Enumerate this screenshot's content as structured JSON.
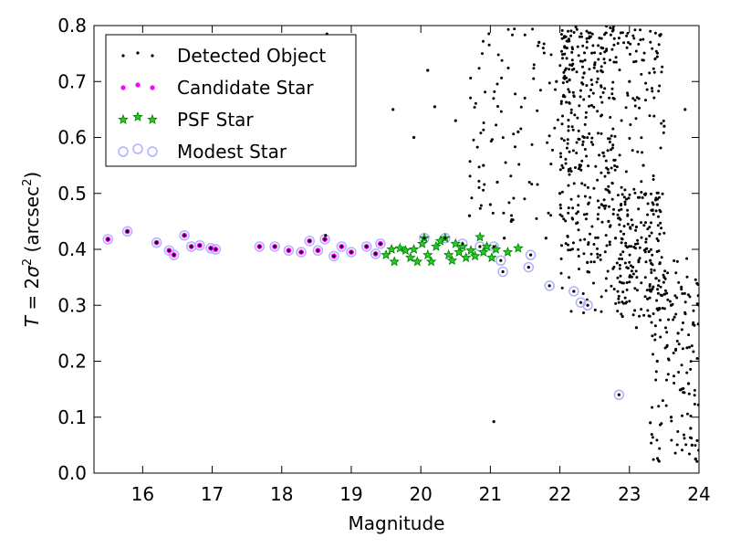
{
  "chart_data": {
    "type": "scatter",
    "xlabel": "Magnitude",
    "ylabel": "T = 2σ² (arcsec²)",
    "ylabel_parts": {
      "italic": "T",
      "mid": " = 2",
      "sigma": "σ",
      "sup": "2",
      "unit": " (arcsec",
      "unit_sup": "2",
      "close": ")"
    },
    "xlim": [
      15.3,
      24
    ],
    "ylim": [
      0,
      0.8
    ],
    "xticks": [
      16,
      17,
      18,
      19,
      20,
      21,
      22,
      23,
      24
    ],
    "yticks": [
      0.0,
      0.1,
      0.2,
      0.3,
      0.4,
      0.5,
      0.6,
      0.7,
      0.8
    ],
    "ytick_labels": [
      "0.0",
      "0.1",
      "0.2",
      "0.3",
      "0.4",
      "0.5",
      "0.6",
      "0.7",
      "0.8"
    ],
    "grid": false,
    "legend_position": "top-left",
    "colors": {
      "detected": "#000000",
      "candidate": "#ff00ff",
      "psf": "#008000",
      "modest": "#b0b0ff"
    },
    "series": [
      {
        "name": "Detected Object",
        "marker": "dot",
        "points": [
          [
            15.5,
            0.418
          ],
          [
            15.78,
            0.432
          ],
          [
            16.2,
            0.412
          ],
          [
            16.38,
            0.398
          ],
          [
            16.45,
            0.39
          ],
          [
            16.6,
            0.425
          ],
          [
            16.7,
            0.405
          ],
          [
            16.82,
            0.407
          ],
          [
            16.98,
            0.402
          ],
          [
            17.05,
            0.4
          ],
          [
            17.68,
            0.405
          ],
          [
            17.9,
            0.405
          ],
          [
            18.1,
            0.398
          ],
          [
            18.28,
            0.395
          ],
          [
            18.4,
            0.415
          ],
          [
            18.52,
            0.398
          ],
          [
            18.62,
            0.418
          ],
          [
            18.63,
            0.425
          ],
          [
            18.75,
            0.388
          ],
          [
            18.86,
            0.405
          ],
          [
            19.0,
            0.395
          ],
          [
            19.22,
            0.405
          ],
          [
            19.35,
            0.392
          ],
          [
            19.42,
            0.41
          ],
          [
            20.05,
            0.42
          ],
          [
            20.35,
            0.42
          ],
          [
            20.6,
            0.41
          ],
          [
            20.85,
            0.405
          ],
          [
            21.05,
            0.405
          ],
          [
            21.15,
            0.38
          ],
          [
            21.18,
            0.36
          ],
          [
            21.58,
            0.39
          ],
          [
            21.55,
            0.368
          ],
          [
            21.85,
            0.335
          ],
          [
            22.2,
            0.325
          ],
          [
            22.3,
            0.305
          ],
          [
            22.4,
            0.3
          ],
          [
            22.85,
            0.14
          ],
          [
            21.05,
            0.092
          ],
          [
            18.65,
            0.785
          ],
          [
            19.6,
            0.65
          ],
          [
            20.2,
            0.655
          ],
          [
            20.5,
            0.63
          ],
          [
            20.9,
            0.55
          ],
          [
            21.0,
            0.48
          ],
          [
            20.7,
            0.46
          ],
          [
            21.1,
            0.52
          ],
          [
            21.3,
            0.45
          ],
          [
            19.9,
            0.6
          ],
          [
            21.95,
            0.7
          ],
          [
            22.35,
            0.6
          ],
          [
            22.8,
            0.42
          ],
          [
            23.1,
            0.44
          ],
          [
            23.3,
            0.38
          ],
          [
            23.5,
            0.35
          ],
          [
            23.7,
            0.25
          ],
          [
            23.85,
            0.16
          ],
          [
            23.9,
            0.05
          ],
          [
            23.95,
            0.025
          ],
          [
            23.4,
            0.2
          ],
          [
            23.75,
            0.15
          ],
          [
            23.6,
            0.3
          ],
          [
            23.2,
            0.55
          ],
          [
            22.6,
            0.48
          ],
          [
            22.0,
            0.5
          ],
          [
            21.4,
            0.61
          ],
          [
            21.2,
            0.42
          ],
          [
            20.1,
            0.72
          ],
          [
            21.7,
            0.77
          ],
          [
            22.1,
            0.76
          ],
          [
            22.5,
            0.73
          ],
          [
            23.0,
            0.7
          ],
          [
            23.5,
            0.62
          ],
          [
            23.8,
            0.65
          ],
          [
            22.9,
            0.28
          ],
          [
            23.1,
            0.26
          ],
          [
            23.6,
            0.1
          ],
          [
            23.88,
            0.08
          ],
          [
            23.3,
            0.09
          ],
          [
            22.7,
            0.45
          ],
          [
            22.4,
            0.36
          ],
          [
            21.8,
            0.42
          ],
          [
            22.3,
            0.55
          ],
          [
            23.4,
            0.48
          ]
        ]
      },
      {
        "name": "Candidate Star",
        "marker": "circle",
        "points": [
          [
            15.5,
            0.418
          ],
          [
            15.78,
            0.432
          ],
          [
            16.2,
            0.412
          ],
          [
            16.38,
            0.398
          ],
          [
            16.45,
            0.39
          ],
          [
            16.6,
            0.425
          ],
          [
            16.7,
            0.405
          ],
          [
            16.82,
            0.407
          ],
          [
            16.98,
            0.402
          ],
          [
            17.05,
            0.4
          ],
          [
            17.68,
            0.405
          ],
          [
            17.9,
            0.405
          ],
          [
            18.1,
            0.398
          ],
          [
            18.28,
            0.395
          ],
          [
            18.4,
            0.415
          ],
          [
            18.52,
            0.398
          ],
          [
            18.62,
            0.418
          ],
          [
            18.75,
            0.388
          ],
          [
            18.86,
            0.405
          ],
          [
            19.0,
            0.395
          ],
          [
            19.22,
            0.405
          ],
          [
            19.35,
            0.392
          ],
          [
            19.42,
            0.41
          ]
        ]
      },
      {
        "name": "PSF Star",
        "marker": "star",
        "points": [
          [
            19.5,
            0.39
          ],
          [
            19.58,
            0.4
          ],
          [
            19.62,
            0.378
          ],
          [
            19.7,
            0.402
          ],
          [
            19.78,
            0.398
          ],
          [
            19.85,
            0.385
          ],
          [
            19.9,
            0.4
          ],
          [
            19.95,
            0.378
          ],
          [
            20.02,
            0.41
          ],
          [
            20.05,
            0.42
          ],
          [
            20.1,
            0.39
          ],
          [
            20.15,
            0.378
          ],
          [
            20.22,
            0.405
          ],
          [
            20.28,
            0.415
          ],
          [
            20.35,
            0.42
          ],
          [
            20.4,
            0.39
          ],
          [
            20.45,
            0.38
          ],
          [
            20.5,
            0.41
          ],
          [
            20.55,
            0.395
          ],
          [
            20.6,
            0.405
          ],
          [
            20.65,
            0.385
          ],
          [
            20.72,
            0.398
          ],
          [
            20.78,
            0.388
          ],
          [
            20.85,
            0.422
          ],
          [
            20.9,
            0.395
          ],
          [
            20.95,
            0.405
          ],
          [
            21.02,
            0.385
          ],
          [
            21.08,
            0.4
          ],
          [
            21.25,
            0.395
          ],
          [
            21.4,
            0.402
          ]
        ]
      },
      {
        "name": "Modest Star",
        "marker": "open-circle",
        "points": [
          [
            15.5,
            0.418
          ],
          [
            15.78,
            0.432
          ],
          [
            16.2,
            0.412
          ],
          [
            16.38,
            0.398
          ],
          [
            16.45,
            0.39
          ],
          [
            16.6,
            0.425
          ],
          [
            16.7,
            0.405
          ],
          [
            16.82,
            0.407
          ],
          [
            16.98,
            0.402
          ],
          [
            17.05,
            0.4
          ],
          [
            17.68,
            0.405
          ],
          [
            17.9,
            0.405
          ],
          [
            18.1,
            0.398
          ],
          [
            18.28,
            0.395
          ],
          [
            18.4,
            0.415
          ],
          [
            18.52,
            0.398
          ],
          [
            18.62,
            0.418
          ],
          [
            18.75,
            0.388
          ],
          [
            18.86,
            0.405
          ],
          [
            19.0,
            0.395
          ],
          [
            19.22,
            0.405
          ],
          [
            19.35,
            0.392
          ],
          [
            19.42,
            0.41
          ],
          [
            20.05,
            0.42
          ],
          [
            20.35,
            0.42
          ],
          [
            20.6,
            0.41
          ],
          [
            20.85,
            0.405
          ],
          [
            21.05,
            0.405
          ],
          [
            21.15,
            0.38
          ],
          [
            21.18,
            0.36
          ],
          [
            21.58,
            0.39
          ],
          [
            21.55,
            0.368
          ],
          [
            21.85,
            0.335
          ],
          [
            22.2,
            0.325
          ],
          [
            22.3,
            0.305
          ],
          [
            22.4,
            0.3
          ],
          [
            22.85,
            0.14
          ]
        ]
      }
    ],
    "scatter_cloud": {
      "x_range": [
        20.7,
        24.0
      ],
      "y_range": [
        0.0,
        0.8
      ],
      "count": 850,
      "dense_core": {
        "x": [
          22.0,
          23.5
        ],
        "y": [
          0.28,
          0.8
        ]
      }
    }
  }
}
